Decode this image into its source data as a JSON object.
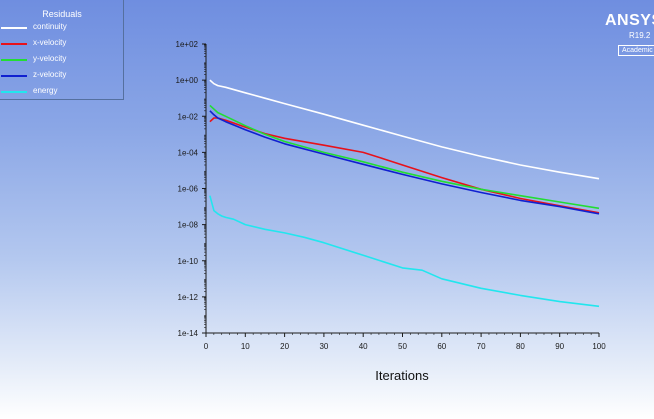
{
  "branding": {
    "name": "ANSYS",
    "version": "R19.2",
    "edition": "Academic"
  },
  "legend": {
    "title": "Residuals",
    "items": [
      {
        "label": "continuity",
        "color": "#ffffff"
      },
      {
        "label": "x-velocity",
        "color": "#e8111a"
      },
      {
        "label": "y-velocity",
        "color": "#22dd33"
      },
      {
        "label": "z-velocity",
        "color": "#1020d0"
      },
      {
        "label": "energy",
        "color": "#22e6ee"
      }
    ]
  },
  "chart_data": {
    "type": "line",
    "title": "",
    "xlabel": "Iterations",
    "ylabel": "",
    "xlim": [
      0,
      100
    ],
    "ylim": [
      1e-14,
      100
    ],
    "y_scale": "log",
    "x_ticks": [
      "0",
      "10",
      "20",
      "30",
      "40",
      "50",
      "60",
      "70",
      "80",
      "90",
      "100"
    ],
    "y_ticks": [
      "1e+02",
      "1e+00",
      "1e-02",
      "1e-04",
      "1e-06",
      "1e-08",
      "1e-10",
      "1e-12",
      "1e-14"
    ],
    "grid": false,
    "series": [
      {
        "name": "continuity",
        "color": "#ffffff",
        "x": [
          1,
          2,
          3,
          5,
          10,
          15,
          20,
          30,
          40,
          50,
          60,
          70,
          80,
          90,
          100
        ],
        "y": [
          1.0,
          0.63,
          0.5,
          0.4,
          0.2,
          0.1,
          0.05,
          0.013,
          0.0032,
          0.0008,
          0.0002,
          6e-05,
          2e-05,
          8e-06,
          3.5e-06
        ]
      },
      {
        "name": "x-velocity",
        "color": "#e8111a",
        "x": [
          1,
          2,
          3,
          5,
          10,
          15,
          20,
          30,
          40,
          45,
          50,
          60,
          70,
          80,
          90,
          100
        ],
        "y": [
          0.005,
          0.008,
          0.008,
          0.006,
          0.0025,
          0.0011,
          0.0006,
          0.00025,
          0.0001,
          4.5e-05,
          2e-05,
          4e-06,
          9e-07,
          2.8e-07,
          1.1e-07,
          4.5e-08
        ]
      },
      {
        "name": "y-velocity",
        "color": "#22dd33",
        "x": [
          1,
          2,
          3,
          5,
          10,
          15,
          20,
          30,
          40,
          50,
          60,
          70,
          80,
          90,
          100
        ],
        "y": [
          0.04,
          0.025,
          0.016,
          0.01,
          0.003,
          0.001,
          0.0004,
          0.0001,
          3e-05,
          8e-06,
          2.5e-06,
          9e-07,
          4e-07,
          1.8e-07,
          8e-08
        ]
      },
      {
        "name": "z-velocity",
        "color": "#1020d0",
        "x": [
          1,
          2,
          3,
          5,
          10,
          15,
          20,
          30,
          40,
          50,
          60,
          70,
          80,
          90,
          100
        ],
        "y": [
          0.02,
          0.012,
          0.008,
          0.005,
          0.0018,
          0.0007,
          0.0003,
          8e-05,
          2.2e-05,
          6e-06,
          1.8e-06,
          6e-07,
          2.2e-07,
          1e-07,
          4e-08
        ]
      },
      {
        "name": "energy",
        "color": "#22e6ee",
        "x": [
          1,
          2,
          3,
          4,
          5,
          7,
          10,
          15,
          20,
          25,
          30,
          40,
          50,
          55,
          60,
          70,
          80,
          90,
          100
        ],
        "y": [
          4e-07,
          6e-08,
          4e-08,
          3e-08,
          2.5e-08,
          2e-08,
          1e-08,
          5.5e-09,
          3.5e-09,
          2e-09,
          1e-09,
          2e-10,
          4e-11,
          3e-11,
          1e-11,
          3e-12,
          1.2e-12,
          5.5e-13,
          3e-13
        ]
      }
    ]
  }
}
